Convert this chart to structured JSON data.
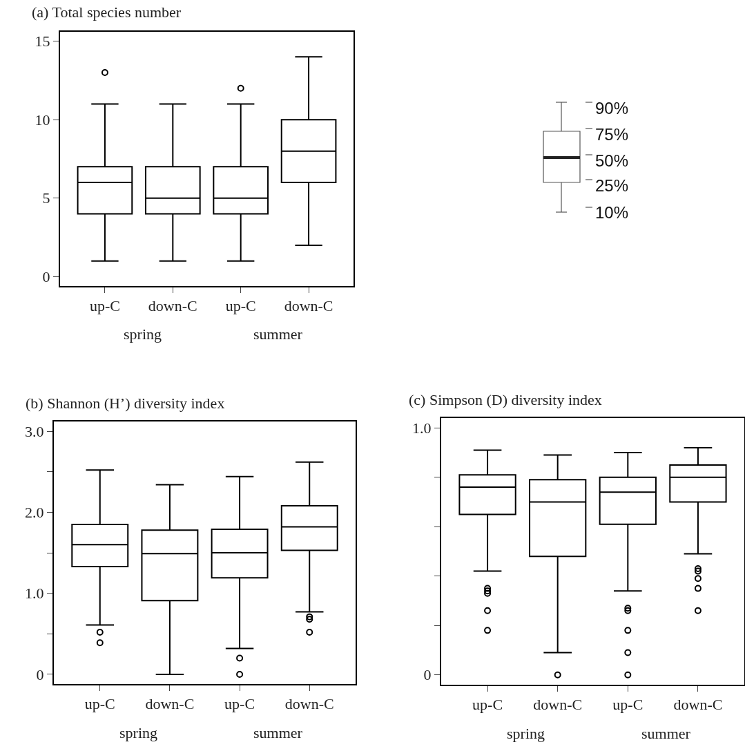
{
  "chart_data": [
    {
      "type": "box",
      "title": "(a) Total species number",
      "categories": [
        "up-C",
        "down-C",
        "up-C",
        "down-C"
      ],
      "annotations": [
        "spring",
        "summer"
      ],
      "ylim": [
        -0.6,
        15.6
      ],
      "yticks": [
        0,
        5,
        10,
        15
      ],
      "series": [
        {
          "color": "#000000",
          "boxes": [
            {
              "low": 1,
              "q1": 4,
              "median": 6,
              "q3": 7,
              "high": 11,
              "outliers": [
                13
              ]
            },
            {
              "low": 1,
              "q1": 4,
              "median": 5,
              "q3": 7,
              "high": 11
            },
            {
              "low": 1,
              "q1": 4,
              "median": 5,
              "q3": 7,
              "high": 11,
              "outliers": [
                12
              ]
            },
            {
              "low": 2,
              "q1": 6,
              "median": 8,
              "q3": 10,
              "high": 14
            }
          ]
        }
      ]
    },
    {
      "type": "box",
      "title": "(b) Shannon (H’) diversity index",
      "categories": [
        "up-C",
        "down-C",
        "up-C",
        "down-C"
      ],
      "annotations": [
        "spring",
        "summer"
      ],
      "ylim": [
        -0.12,
        3.12
      ],
      "yticks": [
        {
          "value": 0,
          "label": "0"
        },
        {
          "value": 0.5,
          "label": null
        },
        {
          "value": 1,
          "label": "1.0"
        },
        {
          "value": 1.5,
          "label": null
        },
        {
          "value": 2,
          "label": "2.0"
        },
        {
          "value": 2.5,
          "label": null
        },
        {
          "value": 3,
          "label": "3.0"
        }
      ],
      "series": [
        {
          "color": "#000000",
          "boxes": [
            {
              "low": 0.61,
              "q1": 1.33,
              "median": 1.6,
              "q3": 1.85,
              "high": 2.52,
              "outliers": [
                0.52,
                0.39
              ]
            },
            {
              "low": 0,
              "q1": 0.91,
              "median": 1.49,
              "q3": 1.78,
              "high": 2.34
            },
            {
              "low": 0.32,
              "q1": 1.19,
              "median": 1.5,
              "q3": 1.79,
              "high": 2.44,
              "outliers": [
                0.2,
                0
              ]
            },
            {
              "low": 0.77,
              "q1": 1.53,
              "median": 1.82,
              "q3": 2.08,
              "high": 2.62,
              "outliers": [
                0.71,
                0.68,
                0.52
              ]
            }
          ]
        }
      ]
    },
    {
      "type": "box",
      "title": "(c) Simpson (D) diversity index",
      "categories": [
        "up-C",
        "down-C",
        "up-C",
        "down-C"
      ],
      "annotations": [
        "spring",
        "summer"
      ],
      "ylim": [
        -0.04,
        1.04
      ],
      "yticks": [
        {
          "value": 0,
          "label": "0"
        },
        {
          "value": 0.2,
          "label": null
        },
        {
          "value": 0.4,
          "label": null
        },
        {
          "value": 0.6,
          "label": null
        },
        {
          "value": 0.8,
          "label": null
        },
        {
          "value": 1,
          "label": "1.0"
        }
      ],
      "series": [
        {
          "color": "#000000",
          "boxes": [
            {
              "low": 0.42,
              "q1": 0.65,
              "median": 0.76,
              "q3": 0.81,
              "high": 0.91,
              "outliers": [
                0.35,
                0.34,
                0.33,
                0.26,
                0.18
              ]
            },
            {
              "low": 0.09,
              "q1": 0.48,
              "median": 0.7,
              "q3": 0.79,
              "high": 0.89,
              "outliers": [
                0
              ]
            },
            {
              "low": 0.34,
              "q1": 0.61,
              "median": 0.74,
              "q3": 0.8,
              "high": 0.9,
              "outliers": [
                0.27,
                0.26,
                0.18,
                0.09,
                0
              ]
            },
            {
              "low": 0.49,
              "q1": 0.7,
              "median": 0.8,
              "q3": 0.85,
              "high": 0.92,
              "outliers": [
                0.43,
                0.42,
                0.39,
                0.35,
                0.26
              ]
            }
          ]
        }
      ]
    },
    {
      "type": "other",
      "annotations": [
        "90%",
        "75%",
        "50%",
        "25%",
        "10%"
      ]
    }
  ]
}
